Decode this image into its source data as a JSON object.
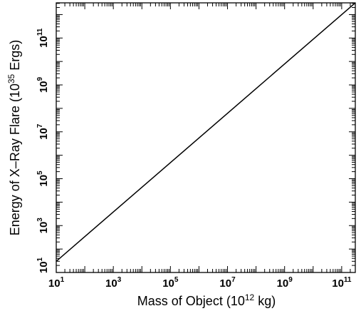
{
  "chart_data": {
    "type": "line",
    "title": "",
    "xlabel": {
      "prefix": "Mass of Object (10",
      "sup": "12",
      "suffix": " kg)"
    },
    "ylabel": {
      "prefix": "Energy of X–Ray Flare (10",
      "sup": "35",
      "suffix": " Ergs)"
    },
    "x_scale": "log",
    "y_scale": "log",
    "xlim": [
      10,
      300000000000.0
    ],
    "ylim": [
      10,
      3160000000000.0
    ],
    "x_ticks": [
      {
        "base": "10",
        "exp": "1",
        "value": 10.0
      },
      {
        "base": "10",
        "exp": "3",
        "value": 1000.0
      },
      {
        "base": "10",
        "exp": "5",
        "value": 100000.0
      },
      {
        "base": "10",
        "exp": "7",
        "value": 10000000.0
      },
      {
        "base": "10",
        "exp": "9",
        "value": 1000000000.0
      },
      {
        "base": "10",
        "exp": "11",
        "value": 100000000000.0
      }
    ],
    "y_ticks": [
      {
        "base": "10",
        "exp": "1",
        "value": 10.0
      },
      {
        "base": "10",
        "exp": "3",
        "value": 1000.0
      },
      {
        "base": "10",
        "exp": "5",
        "value": 100000.0
      },
      {
        "base": "10",
        "exp": "7",
        "value": 10000000.0
      },
      {
        "base": "10",
        "exp": "9",
        "value": 1000000000.0
      },
      {
        "base": "10",
        "exp": "11",
        "value": 100000000000.0
      }
    ],
    "grid": false,
    "series": [
      {
        "x": [
          10,
          300000000000.0
        ],
        "y": [
          30,
          3160000000000.0
        ],
        "color": "#000000"
      }
    ]
  }
}
